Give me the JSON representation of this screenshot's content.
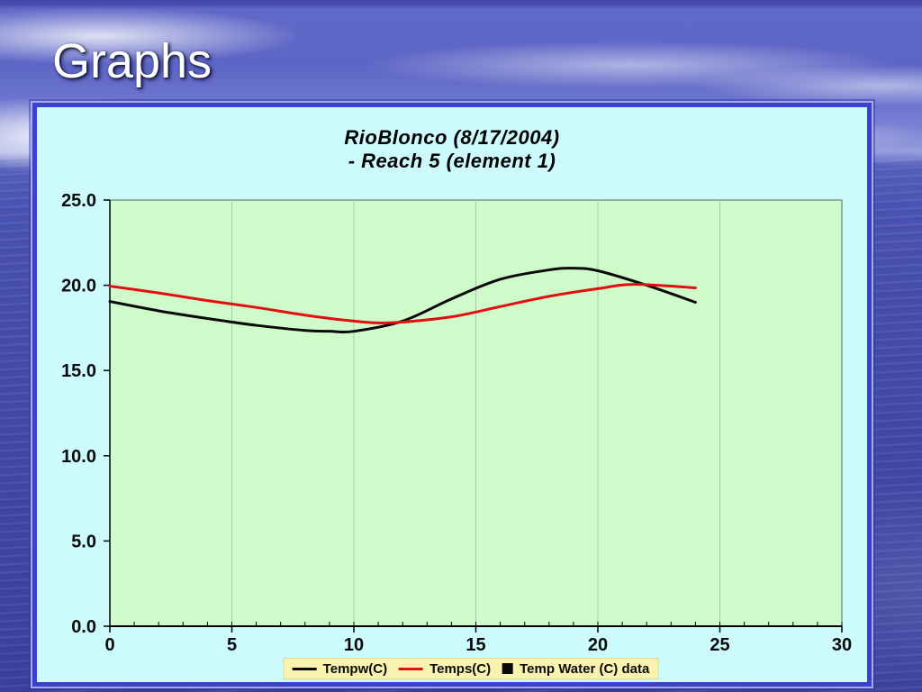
{
  "slide": {
    "title": "Graphs"
  },
  "chart_data": {
    "type": "line",
    "title": "RioBlonco (8/17/2004) - Reach 5 (element 1)",
    "title_line1": "RioBlonco (8/17/2004)",
    "title_line2": "- Reach 5 (element 1)",
    "xlabel": "",
    "ylabel": "",
    "xlim": [
      0,
      30
    ],
    "ylim": [
      0,
      25
    ],
    "xticks_major": [
      0,
      5,
      10,
      15,
      20,
      25,
      30
    ],
    "xtick_labels": [
      "0",
      "5",
      "10",
      "15",
      "20",
      "25",
      "30"
    ],
    "x_minor_step": 1,
    "yticks": [
      0,
      5,
      10,
      15,
      20,
      25
    ],
    "ytick_labels": [
      "0.0",
      "5.0",
      "10.0",
      "15.0",
      "20.0",
      "25.0"
    ],
    "grid": {
      "vertical": true,
      "horizontal": false
    },
    "legend_position": "bottom-center",
    "series": [
      {
        "name": "Tempw(C)",
        "color": "#0a0a0a",
        "swatch": "line",
        "x": [
          0,
          2,
          4,
          6,
          8,
          9,
          10,
          12,
          14,
          16,
          18,
          19,
          20,
          22,
          24
        ],
        "y": [
          19.05,
          18.5,
          18.05,
          17.65,
          17.35,
          17.3,
          17.3,
          17.9,
          19.2,
          20.35,
          20.9,
          21.0,
          20.85,
          20.0,
          19.0
        ]
      },
      {
        "name": "Temps(C)",
        "color": "#e01010",
        "swatch": "line",
        "x": [
          0,
          2,
          4,
          6,
          8,
          10,
          11.5,
          14,
          16,
          18,
          20,
          21.5,
          24
        ],
        "y": [
          19.95,
          19.55,
          19.1,
          18.7,
          18.25,
          17.9,
          17.8,
          18.15,
          18.75,
          19.35,
          19.8,
          20.05,
          19.85
        ]
      },
      {
        "name": "Temp Water (C) data",
        "color": "#0a0a0a",
        "swatch": "square",
        "x": [],
        "y": []
      }
    ],
    "colors": {
      "plot_bg": "#cffbca",
      "chart_bg": "#cdfafd",
      "legend_bg": "#faf3b0",
      "legend_border": "#ded698",
      "grid": "#a8c8a8",
      "plot_border": "#5a695a",
      "axis": "#000000",
      "tick_label": "#0a0a0a",
      "panel_border": "#3b41cc"
    }
  }
}
